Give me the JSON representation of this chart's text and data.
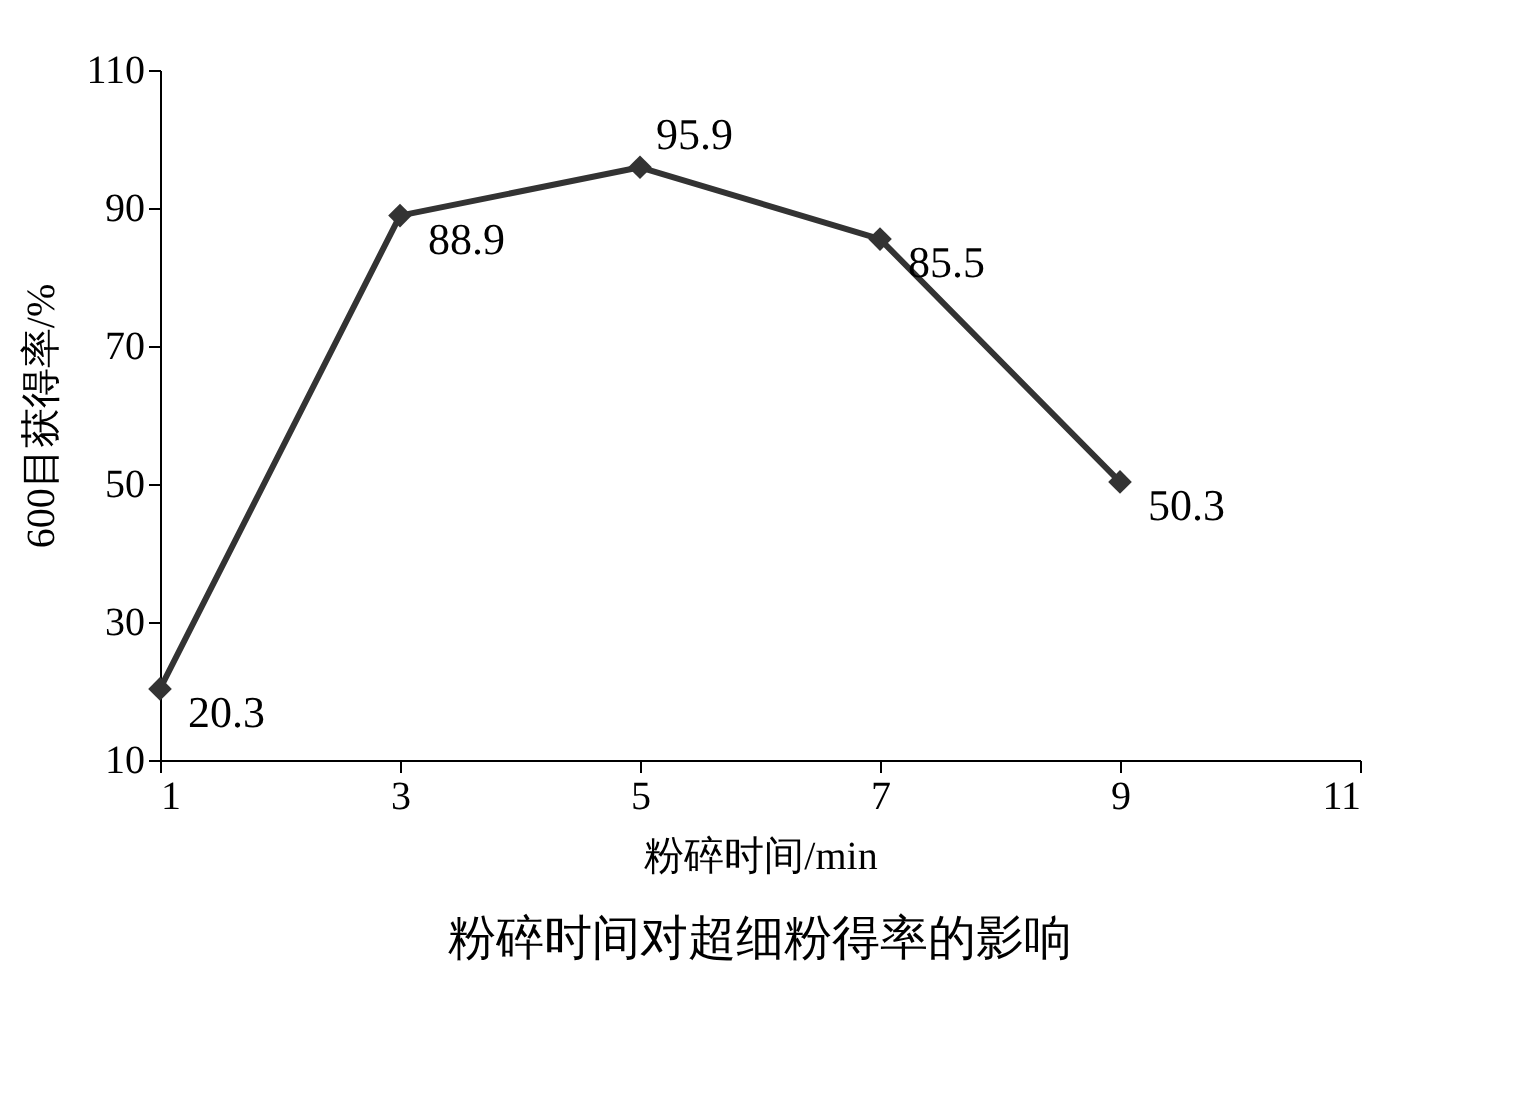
{
  "chart_data": {
    "type": "line",
    "title": "粉碎时间对超细粉得率的影响",
    "xlabel": "粉碎时间/min",
    "ylabel": "600目获得率/%",
    "x": [
      1,
      3,
      5,
      7,
      9
    ],
    "series": [
      {
        "color": "#333333",
        "values": [
          20.3,
          88.9,
          95.9,
          85.5,
          50.3
        ]
      }
    ],
    "xlim": [
      1,
      11
    ],
    "xticks": [
      1,
      3,
      5,
      7,
      9,
      11
    ],
    "ylim": [
      10,
      110
    ],
    "yticks": [
      10,
      30,
      50,
      70,
      90,
      110
    ],
    "grid": false,
    "legend": false,
    "marker": "diamond",
    "line_style": "solid",
    "data_labels": true
  }
}
